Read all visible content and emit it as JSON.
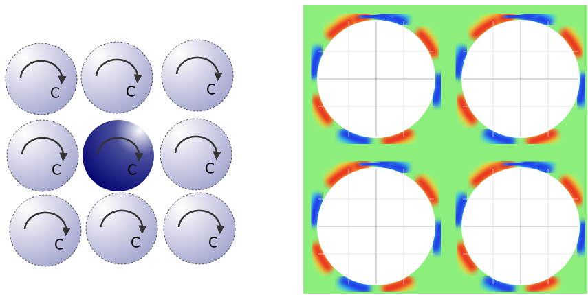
{
  "cells": [
    {
      "label": "C"
    },
    {
      "label": "C"
    },
    {
      "label": "C"
    },
    {
      "label": "C"
    },
    {
      "label": "C"
    },
    {
      "label": "C"
    },
    {
      "label": "C"
    },
    {
      "label": "C"
    },
    {
      "label": "C"
    }
  ]
}
